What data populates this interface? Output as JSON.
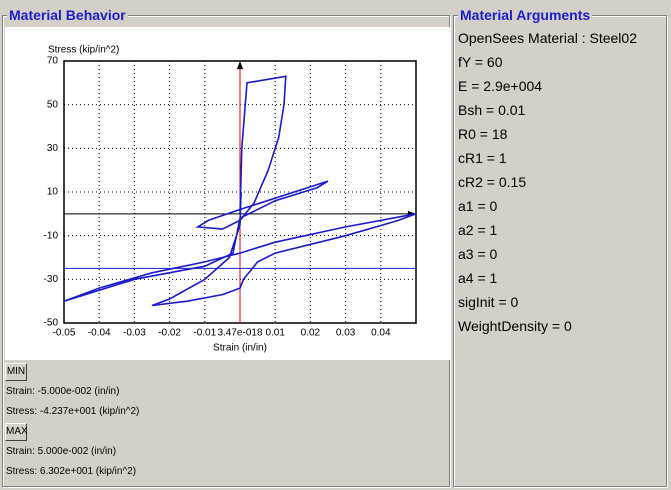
{
  "left_panel": {
    "title": "Material Behavior"
  },
  "chart_data": {
    "type": "line",
    "y_label": "Stress (kip/in^2)",
    "x_label": "Strain (in/in)",
    "xlim": [
      -0.05,
      0.05
    ],
    "ylim": [
      -50,
      70
    ],
    "xticks": [
      -0.05,
      -0.04,
      -0.03,
      -0.02,
      -0.01,
      {
        "value": 3.47e-18,
        "label": "3.47e-018"
      },
      0.01,
      0.02,
      0.03,
      0.04
    ],
    "yticks": [
      70,
      50,
      30,
      10,
      -10,
      -30,
      -50
    ],
    "grid": true,
    "x": [
      0,
      0.0005,
      0.002,
      0.013,
      0.0125,
      0.011,
      0.008,
      0.004,
      0,
      -0.005,
      -0.012,
      -0.009,
      0,
      0.025,
      0.022,
      0.01,
      0,
      -0.002,
      -0.01,
      -0.03,
      -0.05,
      -0.04,
      -0.025,
      -0.01,
      0,
      0.01,
      0.03,
      0.05,
      0.045,
      0.03,
      0.01,
      0.005,
      0.001,
      0,
      -0.005,
      -0.015,
      -0.025,
      -0.02,
      -0.01,
      -0.003,
      0,
      0.0003
    ],
    "series": [
      {
        "color": "#1a1acc",
        "values": [
          0,
          30,
          60,
          63,
          50,
          35,
          20,
          5,
          -3,
          -7,
          -6,
          -3,
          2,
          15,
          12,
          6,
          -2,
          -18,
          -24,
          -30,
          -40,
          -34,
          -27,
          -22,
          -18,
          -13,
          -6,
          0,
          -3,
          -10,
          -18,
          -22,
          -30,
          -34,
          -37,
          -40,
          -42,
          -39,
          -30,
          -20,
          -5,
          10
        ]
      }
    ],
    "reference_line": {
      "value": -25,
      "color": "#1a1acc"
    }
  },
  "min": {
    "button": "MIN",
    "strain": "Strain: -5.000e-002 (in/in)",
    "stress": "Stress: -4.237e+001 (kip/in^2)"
  },
  "max": {
    "button": "MAX",
    "strain": "Strain: 5.000e-002 (in/in)",
    "stress": "Stress: 6.302e+001 (kip/in^2)"
  },
  "right_panel": {
    "title": "Material Arguments",
    "lines": [
      "OpenSees Material : Steel02",
      "fY = 60",
      "E = 2.9e+004",
      "Bsh = 0.01",
      "R0 = 18",
      "cR1 = 1",
      "cR2 = 0.15",
      "a1 = 0",
      "a2 = 1",
      "a3 = 0",
      "a4 = 1",
      "sigInit = 0",
      "WeightDensity = 0"
    ]
  }
}
